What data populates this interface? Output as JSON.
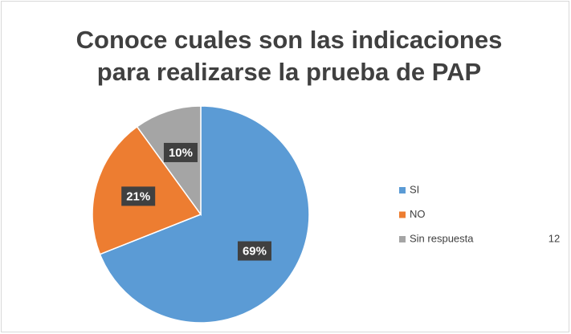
{
  "chart_data": {
    "type": "pie",
    "title": "Conoce cuales son las indicaciones para realizarse la prueba de PAP",
    "categories": [
      "SI",
      "NO",
      "Sin respuesta"
    ],
    "values": [
      69,
      21,
      10
    ],
    "value_labels": [
      "69%",
      "21%",
      "10%"
    ],
    "colors": [
      "#5b9bd5",
      "#ed7d31",
      "#a5a5a5"
    ],
    "legend": "right",
    "annotations": [
      "12"
    ]
  }
}
